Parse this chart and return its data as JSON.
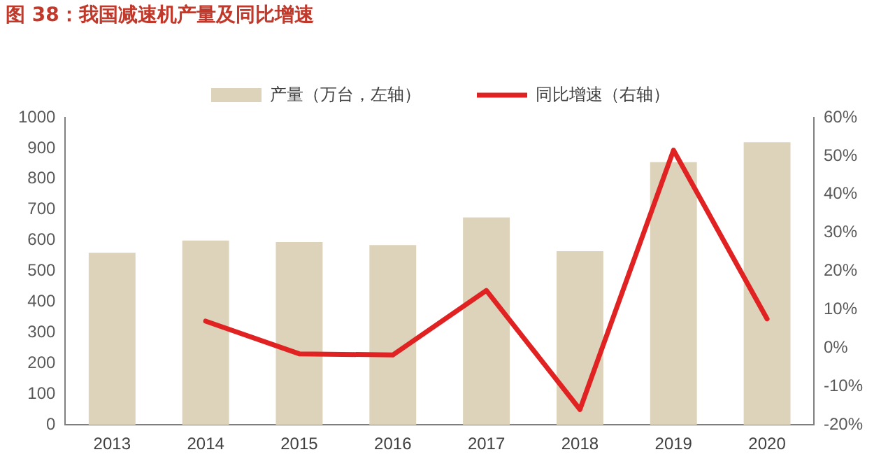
{
  "chart_data": {
    "type": "bar",
    "title": "图 38：我国减速机产量及同比增速",
    "categories": [
      "2013",
      "2014",
      "2015",
      "2016",
      "2017",
      "2018",
      "2019",
      "2020"
    ],
    "series": [
      {
        "name": "产量（万台，左轴）",
        "color": "#ddd3bb",
        "values": [
          560,
          600,
          595,
          585,
          675,
          565,
          855,
          920
        ]
      },
      {
        "name": "同比增速（右轴）",
        "type": "line",
        "axis": "y2",
        "color": "#e02222",
        "values": [
          null,
          7,
          -1.5,
          -1.8,
          15,
          -16,
          51.5,
          7.6
        ]
      }
    ],
    "ylim": [
      0,
      1000
    ],
    "yticks": [
      0,
      100,
      200,
      300,
      400,
      500,
      600,
      700,
      800,
      900,
      1000
    ],
    "y2lim": [
      -20,
      60
    ],
    "y2ticks": [
      {
        "value": -20,
        "label": "-20%"
      },
      {
        "value": -10,
        "label": "-10%"
      },
      {
        "value": 0,
        "label": "0%"
      },
      {
        "value": 10,
        "label": "10%"
      },
      {
        "value": 20,
        "label": "20%"
      },
      {
        "value": 30,
        "label": "30%"
      },
      {
        "value": 40,
        "label": "40%"
      },
      {
        "value": 50,
        "label": "50%"
      },
      {
        "value": 60,
        "label": "60%"
      }
    ],
    "grid": false,
    "legend": "top",
    "marker": "none"
  }
}
